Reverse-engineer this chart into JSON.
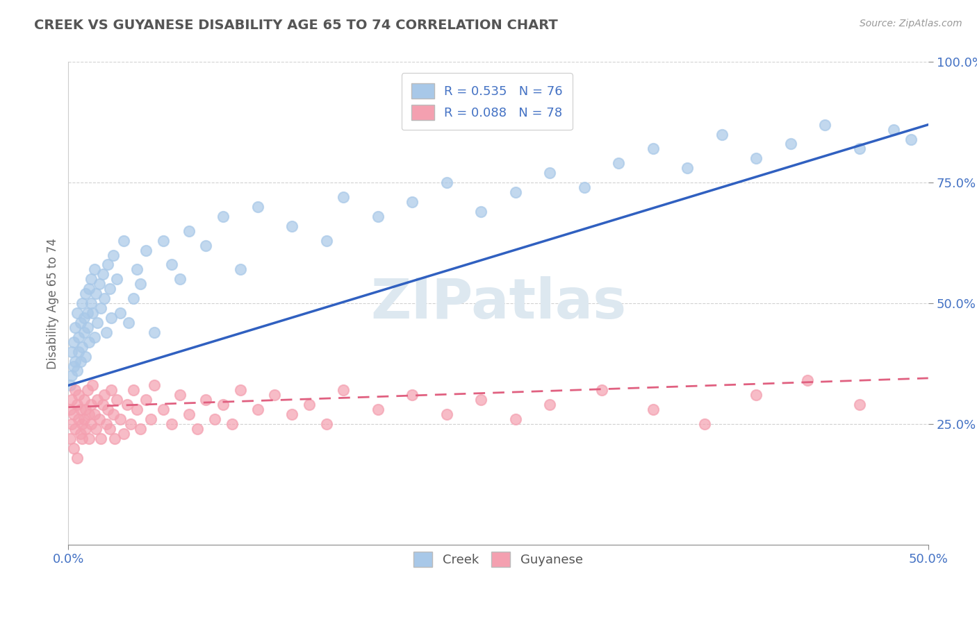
{
  "title": "CREEK VS GUYANESE DISABILITY AGE 65 TO 74 CORRELATION CHART",
  "ylabel": "Disability Age 65 to 74",
  "source_text": "Source: ZipAtlas.com",
  "xlim": [
    0.0,
    0.5
  ],
  "ylim": [
    0.0,
    1.0
  ],
  "creek_R": 0.535,
  "creek_N": 76,
  "guyanese_R": 0.088,
  "guyanese_N": 78,
  "creek_color": "#a8c8e8",
  "guyanese_color": "#f4a0b0",
  "creek_line_color": "#3060c0",
  "guyanese_line_color": "#e06080",
  "background_color": "#ffffff",
  "watermark_color": "#dde8f0",
  "creek_scatter_x": [
    0.001,
    0.002,
    0.002,
    0.003,
    0.003,
    0.004,
    0.004,
    0.005,
    0.005,
    0.006,
    0.006,
    0.007,
    0.007,
    0.008,
    0.008,
    0.009,
    0.009,
    0.01,
    0.01,
    0.011,
    0.011,
    0.012,
    0.012,
    0.013,
    0.013,
    0.014,
    0.015,
    0.015,
    0.016,
    0.017,
    0.018,
    0.019,
    0.02,
    0.021,
    0.022,
    0.023,
    0.024,
    0.025,
    0.026,
    0.028,
    0.03,
    0.032,
    0.035,
    0.038,
    0.04,
    0.042,
    0.045,
    0.05,
    0.055,
    0.06,
    0.065,
    0.07,
    0.08,
    0.09,
    0.1,
    0.11,
    0.13,
    0.15,
    0.16,
    0.18,
    0.2,
    0.22,
    0.24,
    0.26,
    0.28,
    0.3,
    0.32,
    0.34,
    0.36,
    0.38,
    0.4,
    0.42,
    0.44,
    0.46,
    0.48,
    0.49
  ],
  "creek_scatter_y": [
    0.33,
    0.35,
    0.4,
    0.37,
    0.42,
    0.38,
    0.45,
    0.36,
    0.48,
    0.4,
    0.43,
    0.38,
    0.46,
    0.41,
    0.5,
    0.44,
    0.47,
    0.39,
    0.52,
    0.45,
    0.48,
    0.53,
    0.42,
    0.55,
    0.5,
    0.48,
    0.43,
    0.57,
    0.52,
    0.46,
    0.54,
    0.49,
    0.56,
    0.51,
    0.44,
    0.58,
    0.53,
    0.47,
    0.6,
    0.55,
    0.48,
    0.63,
    0.46,
    0.51,
    0.57,
    0.54,
    0.61,
    0.44,
    0.63,
    0.58,
    0.55,
    0.65,
    0.62,
    0.68,
    0.57,
    0.7,
    0.66,
    0.63,
    0.72,
    0.68,
    0.71,
    0.75,
    0.69,
    0.73,
    0.77,
    0.74,
    0.79,
    0.82,
    0.78,
    0.85,
    0.8,
    0.83,
    0.87,
    0.82,
    0.86,
    0.84
  ],
  "guyanese_scatter_x": [
    0.001,
    0.001,
    0.002,
    0.002,
    0.003,
    0.003,
    0.004,
    0.004,
    0.005,
    0.005,
    0.006,
    0.006,
    0.007,
    0.007,
    0.008,
    0.008,
    0.009,
    0.009,
    0.01,
    0.01,
    0.011,
    0.012,
    0.012,
    0.013,
    0.013,
    0.014,
    0.015,
    0.016,
    0.017,
    0.018,
    0.019,
    0.02,
    0.021,
    0.022,
    0.023,
    0.024,
    0.025,
    0.026,
    0.027,
    0.028,
    0.03,
    0.032,
    0.034,
    0.036,
    0.038,
    0.04,
    0.042,
    0.045,
    0.048,
    0.05,
    0.055,
    0.06,
    0.065,
    0.07,
    0.075,
    0.08,
    0.085,
    0.09,
    0.095,
    0.1,
    0.11,
    0.12,
    0.13,
    0.14,
    0.15,
    0.16,
    0.18,
    0.2,
    0.22,
    0.24,
    0.26,
    0.28,
    0.31,
    0.34,
    0.37,
    0.4,
    0.43,
    0.46
  ],
  "guyanese_scatter_y": [
    0.28,
    0.22,
    0.3,
    0.25,
    0.27,
    0.2,
    0.32,
    0.24,
    0.29,
    0.18,
    0.26,
    0.31,
    0.23,
    0.28,
    0.25,
    0.22,
    0.3,
    0.26,
    0.28,
    0.24,
    0.32,
    0.27,
    0.22,
    0.29,
    0.25,
    0.33,
    0.27,
    0.24,
    0.3,
    0.26,
    0.22,
    0.29,
    0.31,
    0.25,
    0.28,
    0.24,
    0.32,
    0.27,
    0.22,
    0.3,
    0.26,
    0.23,
    0.29,
    0.25,
    0.32,
    0.28,
    0.24,
    0.3,
    0.26,
    0.33,
    0.28,
    0.25,
    0.31,
    0.27,
    0.24,
    0.3,
    0.26,
    0.29,
    0.25,
    0.32,
    0.28,
    0.31,
    0.27,
    0.29,
    0.25,
    0.32,
    0.28,
    0.31,
    0.27,
    0.3,
    0.26,
    0.29,
    0.32,
    0.28,
    0.25,
    0.31,
    0.34,
    0.29
  ]
}
